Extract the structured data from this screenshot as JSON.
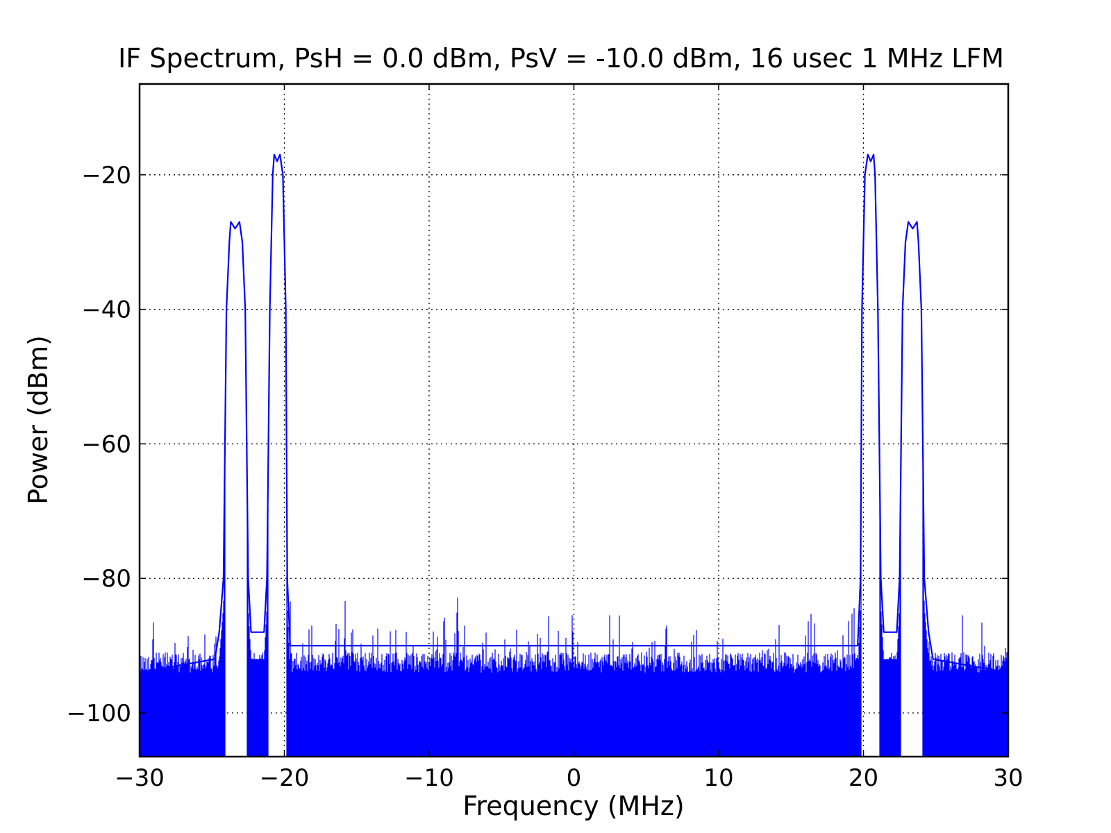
{
  "chart_data": {
    "type": "line",
    "title": "IF Spectrum, PsH = 0.0 dBm, PsV = -10.0 dBm, 16 usec 1 MHz LFM",
    "xlabel": "Frequency (MHz)",
    "ylabel": "Power (dBm)",
    "xlim": [
      -30,
      30
    ],
    "ylim": [
      -106.5,
      -6.5
    ],
    "xticks": [
      -30,
      -20,
      -10,
      0,
      10,
      20,
      30
    ],
    "xtick_labels": [
      "−30",
      "−20",
      "−10",
      "0",
      "10",
      "20",
      "30"
    ],
    "yticks": [
      -100,
      -80,
      -60,
      -40,
      -20
    ],
    "ytick_labels": [
      "−100",
      "−80",
      "−60",
      "−40",
      "−20"
    ],
    "grid": true,
    "line_color": "#0000ff",
    "noise_floor": {
      "top": -91,
      "bottom_clipped": true
    },
    "series": [
      {
        "points": [
          [
            -30.0,
            -94
          ],
          [
            -24.8,
            -92
          ],
          [
            -24.5,
            -88
          ],
          [
            -24.2,
            -80
          ],
          [
            -24.0,
            -40
          ],
          [
            -23.8,
            -30
          ],
          [
            -23.7,
            -27
          ],
          [
            -23.4,
            -28
          ],
          [
            -23.1,
            -27
          ],
          [
            -22.9,
            -30
          ],
          [
            -22.7,
            -40
          ],
          [
            -22.5,
            -80
          ],
          [
            -22.3,
            -88
          ],
          [
            -21.4,
            -88
          ],
          [
            -21.2,
            -80
          ],
          [
            -21.0,
            -40
          ],
          [
            -20.8,
            -20
          ],
          [
            -20.7,
            -17
          ],
          [
            -20.5,
            -18
          ],
          [
            -20.3,
            -17
          ],
          [
            -20.1,
            -20
          ],
          [
            -19.9,
            -40
          ],
          [
            -19.8,
            -80
          ],
          [
            -19.6,
            -90
          ],
          [
            19.6,
            -90
          ],
          [
            19.8,
            -80
          ],
          [
            19.9,
            -40
          ],
          [
            20.1,
            -20
          ],
          [
            20.3,
            -17
          ],
          [
            20.5,
            -18
          ],
          [
            20.7,
            -17
          ],
          [
            20.8,
            -20
          ],
          [
            21.0,
            -40
          ],
          [
            21.2,
            -80
          ],
          [
            21.4,
            -88
          ],
          [
            22.3,
            -88
          ],
          [
            22.5,
            -80
          ],
          [
            22.7,
            -40
          ],
          [
            22.9,
            -30
          ],
          [
            23.1,
            -27
          ],
          [
            23.4,
            -28
          ],
          [
            23.7,
            -27
          ],
          [
            23.8,
            -30
          ],
          [
            24.0,
            -40
          ],
          [
            24.2,
            -80
          ],
          [
            24.5,
            -88
          ],
          [
            24.8,
            -92
          ],
          [
            30.0,
            -94
          ]
        ]
      }
    ]
  }
}
